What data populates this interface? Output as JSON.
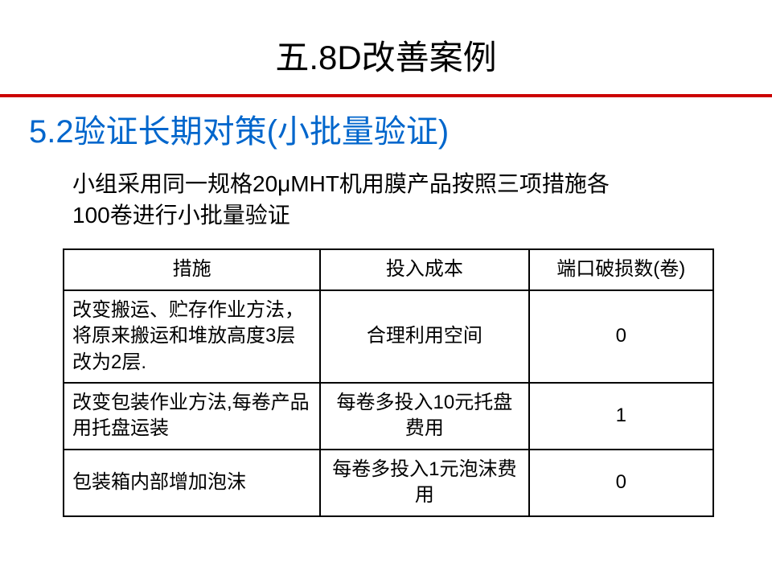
{
  "title": "五.8D改善案例",
  "subtitle": "5.2验证长期对策(小批量验证)",
  "intro": "小组采用同一规格20μMHT机用膜产品按照三项措施各100卷进行小批量验证",
  "colors": {
    "rule": "#cc0000",
    "subtitle": "#0066cc",
    "text": "#000000",
    "background": "#ffffff",
    "border": "#000000"
  },
  "table": {
    "columns": [
      "措施",
      "投入成本",
      "端口破损数(卷)"
    ],
    "rows": [
      [
        "改变搬运、贮存作业方法，将原来搬运和堆放高度3层改为2层.",
        "合理利用空间",
        "0"
      ],
      [
        "改变包装作业方法,每卷产品用托盘运装",
        "每卷多投入10元托盘费用",
        "1"
      ],
      [
        "包装箱内部增加泡沫",
        "每卷多投入1元泡沫费用",
        "0"
      ]
    ]
  }
}
